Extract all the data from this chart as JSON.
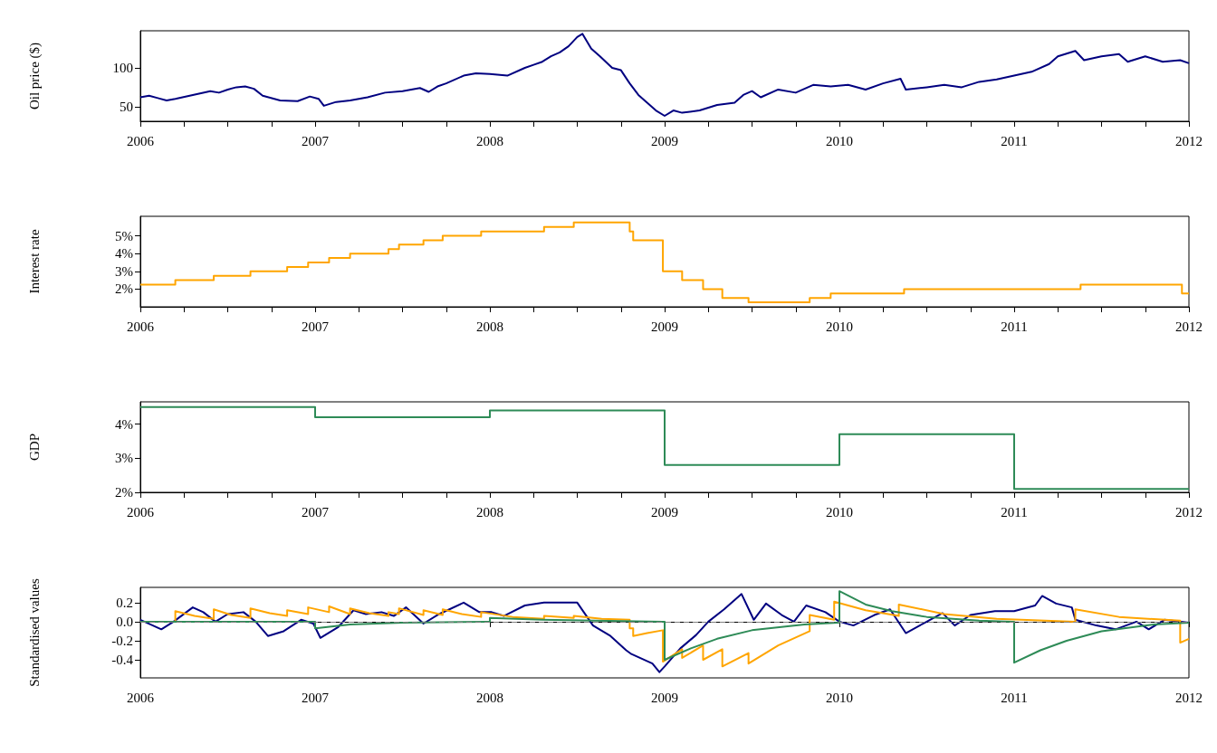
{
  "chart_data": [
    {
      "type": "line",
      "ylabel": "Oil price ($)",
      "color": "#000080",
      "x": [
        2006,
        2006.05,
        2006.1,
        2006.15,
        2006.2,
        2006.3,
        2006.4,
        2006.45,
        2006.5,
        2006.55,
        2006.6,
        2006.65,
        2006.7,
        2006.8,
        2006.9,
        2006.97,
        2007.02,
        2007.05,
        2007.12,
        2007.2,
        2007.3,
        2007.4,
        2007.5,
        2007.6,
        2007.65,
        2007.7,
        2007.75,
        2007.85,
        2007.92,
        2008,
        2008.1,
        2008.2,
        2008.25,
        2008.3,
        2008.35,
        2008.4,
        2008.45,
        2008.5,
        2008.53,
        2008.58,
        2008.63,
        2008.7,
        2008.75,
        2008.8,
        2008.85,
        2008.9,
        2008.95,
        2009,
        2009.05,
        2009.1,
        2009.2,
        2009.3,
        2009.4,
        2009.45,
        2009.5,
        2009.55,
        2009.65,
        2009.75,
        2009.85,
        2009.95,
        2010.05,
        2010.15,
        2010.25,
        2010.35,
        2010.38,
        2010.5,
        2010.6,
        2010.7,
        2010.8,
        2010.9,
        2011,
        2011.1,
        2011.2,
        2011.25,
        2011.35,
        2011.4,
        2011.5,
        2011.6,
        2011.65,
        2011.75,
        2011.85,
        2011.95,
        2012
      ],
      "values": [
        62,
        64,
        61,
        58,
        60,
        65,
        70,
        68,
        72,
        75,
        76,
        73,
        64,
        58,
        57,
        63,
        60,
        51,
        56,
        58,
        62,
        68,
        70,
        74,
        69,
        76,
        80,
        90,
        93,
        92,
        90,
        100,
        104,
        108,
        115,
        120,
        128,
        140,
        144,
        125,
        115,
        100,
        97,
        80,
        65,
        55,
        45,
        38,
        45,
        42,
        45,
        52,
        55,
        65,
        70,
        62,
        72,
        68,
        78,
        76,
        78,
        72,
        80,
        86,
        72,
        75,
        78,
        75,
        82,
        85,
        90,
        95,
        105,
        115,
        122,
        110,
        115,
        118,
        108,
        115,
        108,
        110,
        106
      ],
      "xlim": [
        2006,
        2012
      ],
      "ylim": [
        31,
        148
      ],
      "yticks": [
        50,
        100
      ],
      "xticks": [
        2006,
        {
          "value": 2006.25,
          "label": null
        },
        {
          "value": 2006.5,
          "label": null
        },
        {
          "value": 2006.75,
          "label": null
        },
        2007,
        {
          "value": 2007.25,
          "label": null
        },
        {
          "value": 2007.5,
          "label": null
        },
        {
          "value": 2007.75,
          "label": null
        },
        2008,
        {
          "value": 2008.25,
          "label": null
        },
        {
          "value": 2008.5,
          "label": null
        },
        {
          "value": 2008.75,
          "label": null
        },
        2009,
        {
          "value": 2009.25,
          "label": null
        },
        {
          "value": 2009.5,
          "label": null
        },
        {
          "value": 2009.75,
          "label": null
        },
        2010,
        {
          "value": 2010.25,
          "label": null
        },
        {
          "value": 2010.5,
          "label": null
        },
        {
          "value": 2010.75,
          "label": null
        },
        2011,
        {
          "value": 2011.25,
          "label": null
        },
        {
          "value": 2011.5,
          "label": null
        },
        {
          "value": 2011.75,
          "label": null
        },
        2012
      ]
    },
    {
      "type": "step",
      "ylabel": "Interest rate",
      "color": "#ffa500",
      "x": [
        2006,
        2006.2,
        2006.42,
        2006.63,
        2006.84,
        2006.96,
        2007.08,
        2007.2,
        2007.42,
        2007.48,
        2007.62,
        2007.73,
        2007.95,
        2008.31,
        2008.48,
        2008.8,
        2008.82,
        2008.99,
        2009.1,
        2009.22,
        2009.33,
        2009.48,
        2009.83,
        2009.95,
        2010.37,
        2011.38,
        2011.96,
        2012
      ],
      "values": [
        2.25,
        2.5,
        2.75,
        3,
        3.25,
        3.5,
        3.75,
        4,
        4.25,
        4.5,
        4.75,
        5,
        5.25,
        5.5,
        5.75,
        5.25,
        4.75,
        3,
        2.5,
        2,
        1.5,
        1.25,
        1.5,
        1.75,
        2,
        2.25,
        1.75,
        1.75
      ],
      "xlim": [
        2006,
        2012
      ],
      "ylim": [
        1,
        6.1
      ],
      "yticks": [
        {
          "value": 2,
          "label": "2%"
        },
        {
          "value": 3,
          "label": "3%"
        },
        {
          "value": 4,
          "label": "4%"
        },
        {
          "value": 5,
          "label": "5%"
        }
      ],
      "xticks": [
        2006,
        {
          "value": 2006.25,
          "label": null
        },
        {
          "value": 2006.5,
          "label": null
        },
        {
          "value": 2006.75,
          "label": null
        },
        2007,
        {
          "value": 2007.25,
          "label": null
        },
        {
          "value": 2007.5,
          "label": null
        },
        {
          "value": 2007.75,
          "label": null
        },
        2008,
        {
          "value": 2008.25,
          "label": null
        },
        {
          "value": 2008.5,
          "label": null
        },
        {
          "value": 2008.75,
          "label": null
        },
        2009,
        {
          "value": 2009.25,
          "label": null
        },
        {
          "value": 2009.5,
          "label": null
        },
        {
          "value": 2009.75,
          "label": null
        },
        2010,
        {
          "value": 2010.25,
          "label": null
        },
        {
          "value": 2010.5,
          "label": null
        },
        {
          "value": 2010.75,
          "label": null
        },
        2011,
        {
          "value": 2011.25,
          "label": null
        },
        {
          "value": 2011.5,
          "label": null
        },
        {
          "value": 2011.75,
          "label": null
        },
        2012
      ]
    },
    {
      "type": "step",
      "ylabel": "GDP",
      "color": "#2e8b57",
      "x": [
        2006,
        2007,
        2008,
        2009,
        2010,
        2011,
        2012
      ],
      "values": [
        4.5,
        4.2,
        4.4,
        2.8,
        3.7,
        2.1,
        2.1
      ],
      "xlim": [
        2006,
        2012
      ],
      "ylim": [
        2,
        4.65
      ],
      "yticks": [
        {
          "value": 2,
          "label": "2%"
        },
        {
          "value": 3,
          "label": "3%"
        },
        {
          "value": 4,
          "label": "4%"
        }
      ],
      "xticks": [
        2006,
        {
          "value": 2006.25,
          "label": null
        },
        {
          "value": 2006.5,
          "label": null
        },
        {
          "value": 2006.75,
          "label": null
        },
        2007,
        {
          "value": 2007.25,
          "label": null
        },
        {
          "value": 2007.5,
          "label": null
        },
        {
          "value": 2007.75,
          "label": null
        },
        2008,
        {
          "value": 2008.25,
          "label": null
        },
        {
          "value": 2008.5,
          "label": null
        },
        {
          "value": 2008.75,
          "label": null
        },
        2009,
        {
          "value": 2009.25,
          "label": null
        },
        {
          "value": 2009.5,
          "label": null
        },
        {
          "value": 2009.75,
          "label": null
        },
        2010,
        {
          "value": 2010.25,
          "label": null
        },
        {
          "value": 2010.5,
          "label": null
        },
        {
          "value": 2010.75,
          "label": null
        },
        2011,
        {
          "value": 2011.25,
          "label": null
        },
        {
          "value": 2011.5,
          "label": null
        },
        {
          "value": 2011.75,
          "label": null
        },
        2012
      ]
    },
    {
      "type": "line",
      "ylabel": "Standardised values",
      "xlim": [
        2006,
        2012
      ],
      "ylim": [
        -0.59,
        0.36
      ],
      "yticks": [
        -0.4,
        -0.2,
        {
          "value": 0,
          "label": "0.0"
        },
        0.2
      ],
      "xticks": [
        2006,
        2007,
        2008,
        2009,
        2010,
        2011,
        2012
      ],
      "ref_lines": [
        {
          "axis": "y",
          "value": 0,
          "color": "#808080",
          "line_style": "dashed"
        }
      ],
      "series": [
        {
          "color": "#000080",
          "x": [
            2006,
            2006.12,
            2006.19,
            2006.3,
            2006.36,
            2006.43,
            2006.5,
            2006.59,
            2006.66,
            2006.73,
            2006.82,
            2006.92,
            2006.99,
            2007.03,
            2007.13,
            2007.22,
            2007.29,
            2007.38,
            2007.45,
            2007.52,
            2007.62,
            2007.71,
            2007.85,
            2007.94,
            2008.01,
            2008.08,
            2008.2,
            2008.31,
            2008.5,
            2008.59,
            2008.69,
            2008.78,
            2008.81,
            2008.93,
            2008.97,
            2009,
            2009.09,
            2009.18,
            2009.25,
            2009.34,
            2009.44,
            2009.51,
            2009.58,
            2009.67,
            2009.74,
            2009.81,
            2009.92,
            2010,
            2010.08,
            2010.2,
            2010.29,
            2010.38,
            2010.5,
            2010.59,
            2010.66,
            2010.75,
            2010.89,
            2011,
            2011.12,
            2011.16,
            2011.24,
            2011.33,
            2011.35,
            2011.47,
            2011.58,
            2011.7,
            2011.77,
            2011.86,
            2012
          ],
          "values": [
            0.02,
            -0.08,
            0,
            0.15,
            0.1,
            0,
            0.08,
            0.1,
            0,
            -0.15,
            -0.1,
            0.02,
            -0.02,
            -0.17,
            -0.06,
            0.12,
            0.08,
            0.1,
            0.06,
            0.15,
            -0.02,
            0.08,
            0.2,
            0.1,
            0.1,
            0.06,
            0.17,
            0.2,
            0.2,
            -0.04,
            -0.15,
            -0.3,
            -0.34,
            -0.44,
            -0.53,
            -0.47,
            -0.28,
            -0.14,
            0,
            0.13,
            0.29,
            0.02,
            0.19,
            0.07,
            0,
            0.17,
            0.1,
            0,
            -0.04,
            0.07,
            0.13,
            -0.12,
            0,
            0.09,
            -0.04,
            0.07,
            0.11,
            0.11,
            0.17,
            0.27,
            0.19,
            0.15,
            0.02,
            -0.04,
            -0.08,
            0,
            -0.08,
            0.02,
            -0.01
          ]
        },
        {
          "color": "#ffa500",
          "x": [
            2006,
            2006.2,
            2006.2,
            2006.31,
            2006.42,
            2006.42,
            2006.52,
            2006.63,
            2006.63,
            2006.74,
            2006.84,
            2006.84,
            2006.96,
            2006.96,
            2007.08,
            2007.08,
            2007.2,
            2007.2,
            2007.31,
            2007.42,
            2007.42,
            2007.48,
            2007.48,
            2007.62,
            2007.62,
            2007.73,
            2007.73,
            2007.84,
            2007.95,
            2007.95,
            2008.13,
            2008.31,
            2008.31,
            2008.48,
            2008.48,
            2008.64,
            2008.8,
            2008.8,
            2008.82,
            2008.82,
            2008.9,
            2008.99,
            2008.99,
            2009.1,
            2009.1,
            2009.22,
            2009.22,
            2009.33,
            2009.33,
            2009.48,
            2009.48,
            2009.65,
            2009.83,
            2009.83,
            2009.97,
            2009.97,
            2010.15,
            2010.34,
            2010.34,
            2010.6,
            2010.9,
            2011.35,
            2011.35,
            2011.6,
            2011.95,
            2011.95,
            2012
          ],
          "values": [
            0,
            0,
            0.11,
            0.06,
            0.03,
            0.13,
            0.07,
            0.04,
            0.14,
            0.09,
            0.06,
            0.12,
            0.08,
            0.15,
            0.1,
            0.16,
            0.08,
            0.14,
            0.09,
            0.06,
            0.1,
            0.08,
            0.14,
            0.07,
            0.12,
            0.07,
            0.13,
            0.08,
            0.05,
            0.1,
            0.05,
            0.03,
            0.06,
            0.04,
            0.06,
            0.03,
            0.02,
            -0.07,
            -0.07,
            -0.15,
            -0.12,
            -0.09,
            -0.42,
            -0.29,
            -0.38,
            -0.25,
            -0.4,
            -0.29,
            -0.47,
            -0.33,
            -0.44,
            -0.25,
            -0.1,
            0.07,
            0.02,
            0.21,
            0.12,
            0.06,
            0.18,
            0.08,
            0.03,
            0,
            0.13,
            0.05,
            0.01,
            -0.22,
            -0.18
          ]
        },
        {
          "color": "#2e8b57",
          "x": [
            2006,
            2007,
            2007,
            2007.2,
            2007.5,
            2007.99,
            2008,
            2008,
            2008.3,
            2008.99,
            2009,
            2009,
            2009.15,
            2009.3,
            2009.5,
            2009.8,
            2009.99,
            2010,
            2010,
            2010.15,
            2010.3,
            2010.5,
            2010.8,
            2010.99,
            2011,
            2011,
            2011.15,
            2011.3,
            2011.5,
            2011.8,
            2012
          ],
          "values": [
            0,
            0,
            -0.07,
            -0.03,
            -0.01,
            0,
            0,
            0.04,
            0.02,
            0,
            0,
            -0.4,
            -0.28,
            -0.18,
            -0.09,
            -0.03,
            -0.01,
            -0.01,
            0.32,
            0.18,
            0.11,
            0.05,
            0.01,
            0,
            0,
            -0.43,
            -0.3,
            -0.2,
            -0.1,
            -0.03,
            -0.01
          ]
        }
      ]
    }
  ]
}
